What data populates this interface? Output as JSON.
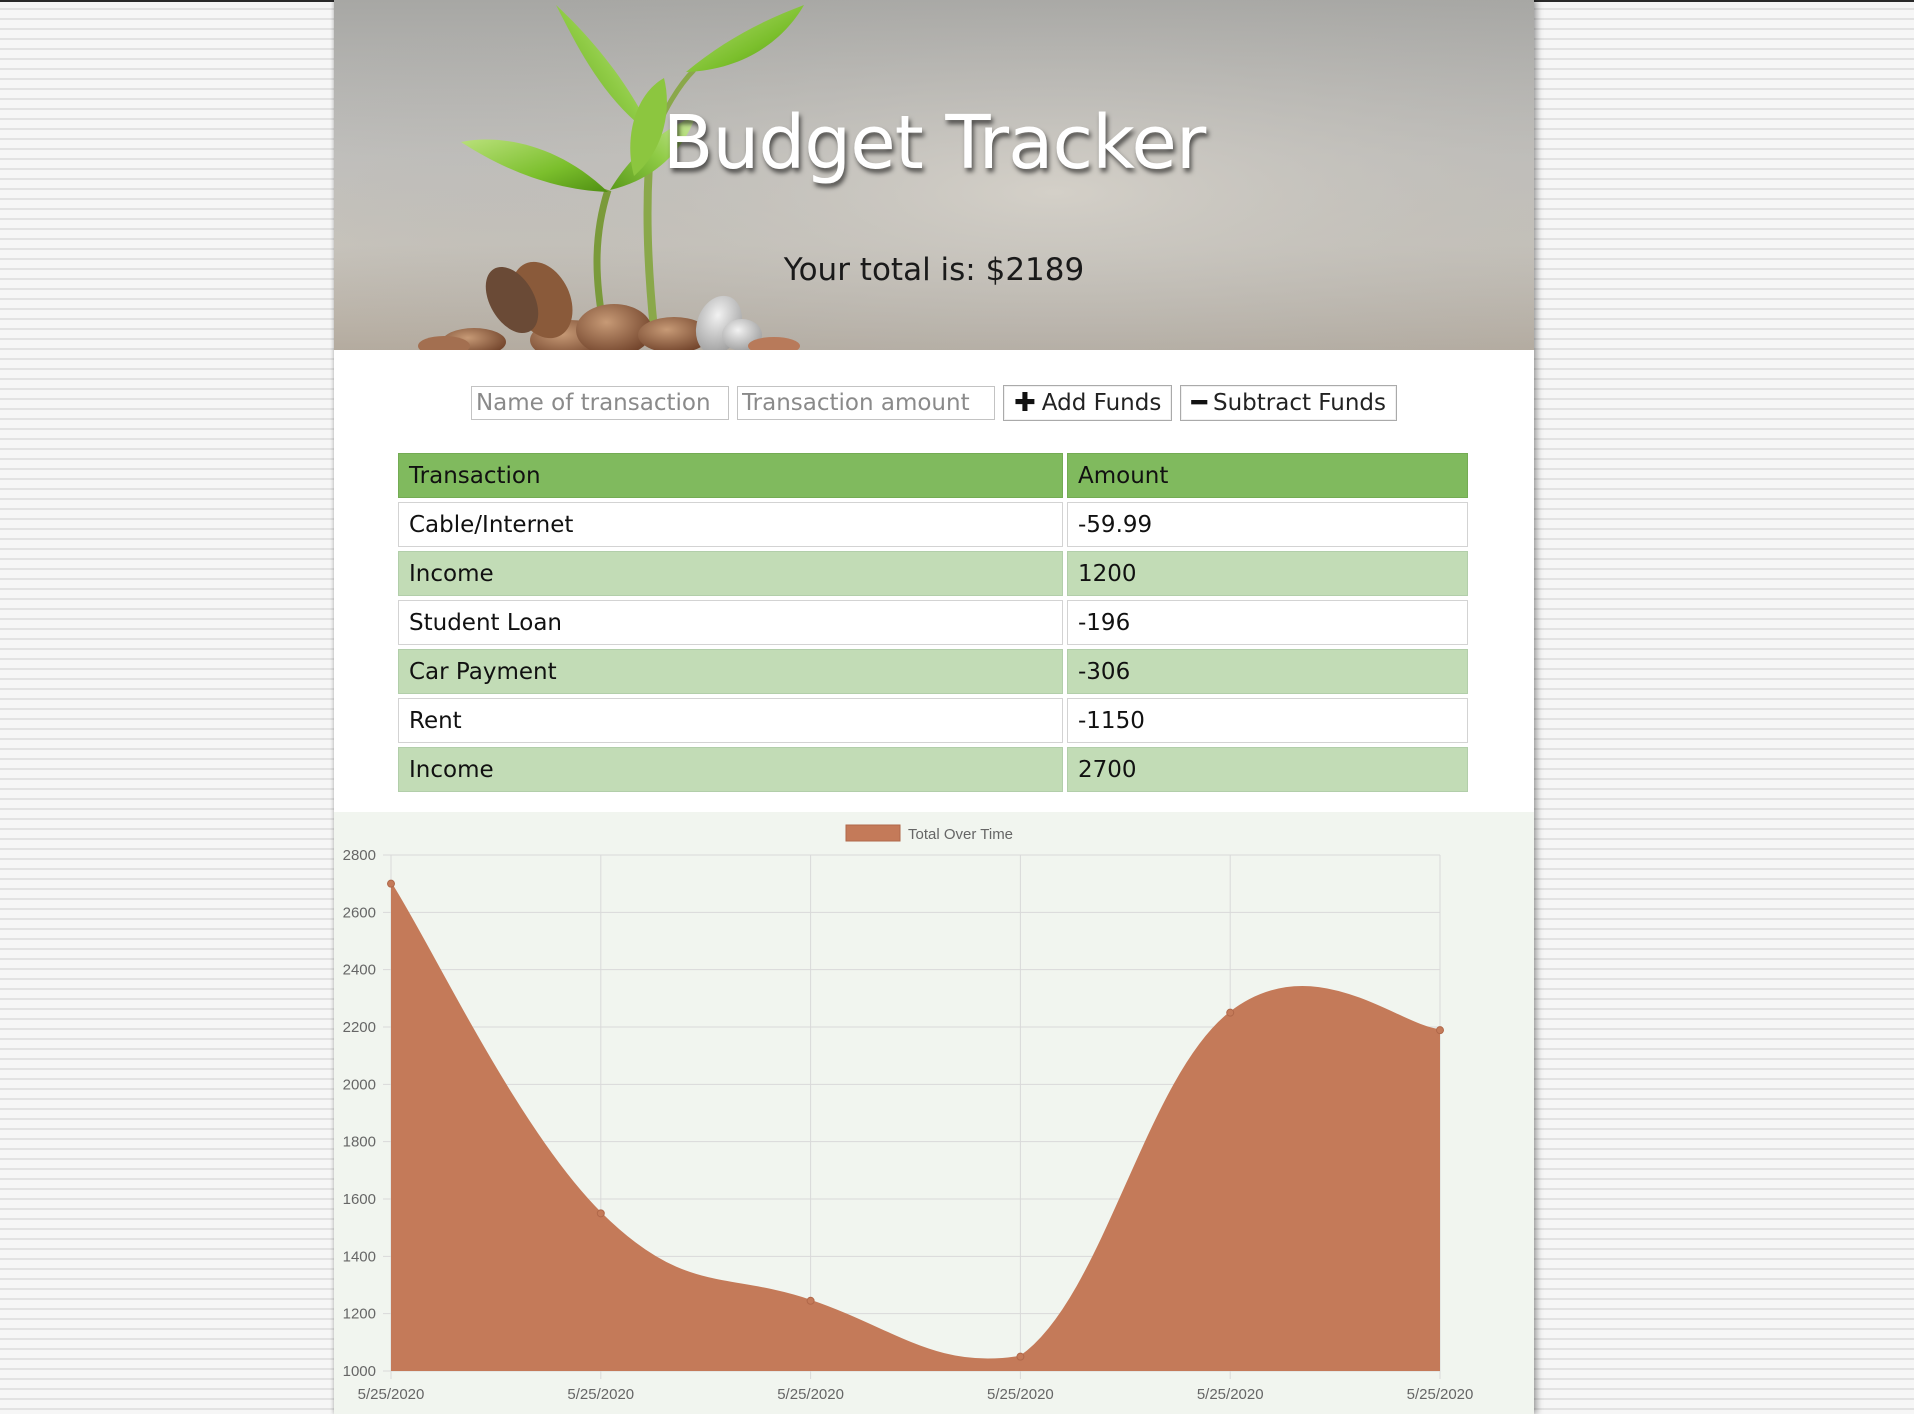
{
  "header": {
    "title": "Budget Tracker",
    "total_label": "Your total is: $2189"
  },
  "form": {
    "name_placeholder": "Name of transaction",
    "amount_placeholder": "Transaction amount",
    "add_label": "Add Funds",
    "subtract_label": "Subtract Funds"
  },
  "table": {
    "headers": [
      "Transaction",
      "Amount"
    ],
    "rows": [
      {
        "name": "Cable/Internet",
        "amount": "-59.99"
      },
      {
        "name": "Income",
        "amount": "1200"
      },
      {
        "name": "Student Loan",
        "amount": "-196"
      },
      {
        "name": "Car Payment",
        "amount": "-306"
      },
      {
        "name": "Rent",
        "amount": "-1150"
      },
      {
        "name": "Income",
        "amount": "2700"
      }
    ]
  },
  "chart_data": {
    "type": "area",
    "x": [
      "5/25/2020",
      "5/25/2020",
      "5/25/2020",
      "5/25/2020",
      "5/25/2020",
      "5/25/2020"
    ],
    "series": [
      {
        "name": "Total Over Time",
        "values": [
          2700,
          1550,
          1245,
          1050,
          2250,
          2189
        ]
      }
    ],
    "ylim": [
      1000,
      2800
    ],
    "yticks": [
      1000,
      1200,
      1400,
      1600,
      1800,
      2000,
      2200,
      2400,
      2600,
      2800
    ],
    "grid": true,
    "legend": "top-center",
    "fill_color": "#c47a59",
    "line_color": "#c47a59"
  }
}
